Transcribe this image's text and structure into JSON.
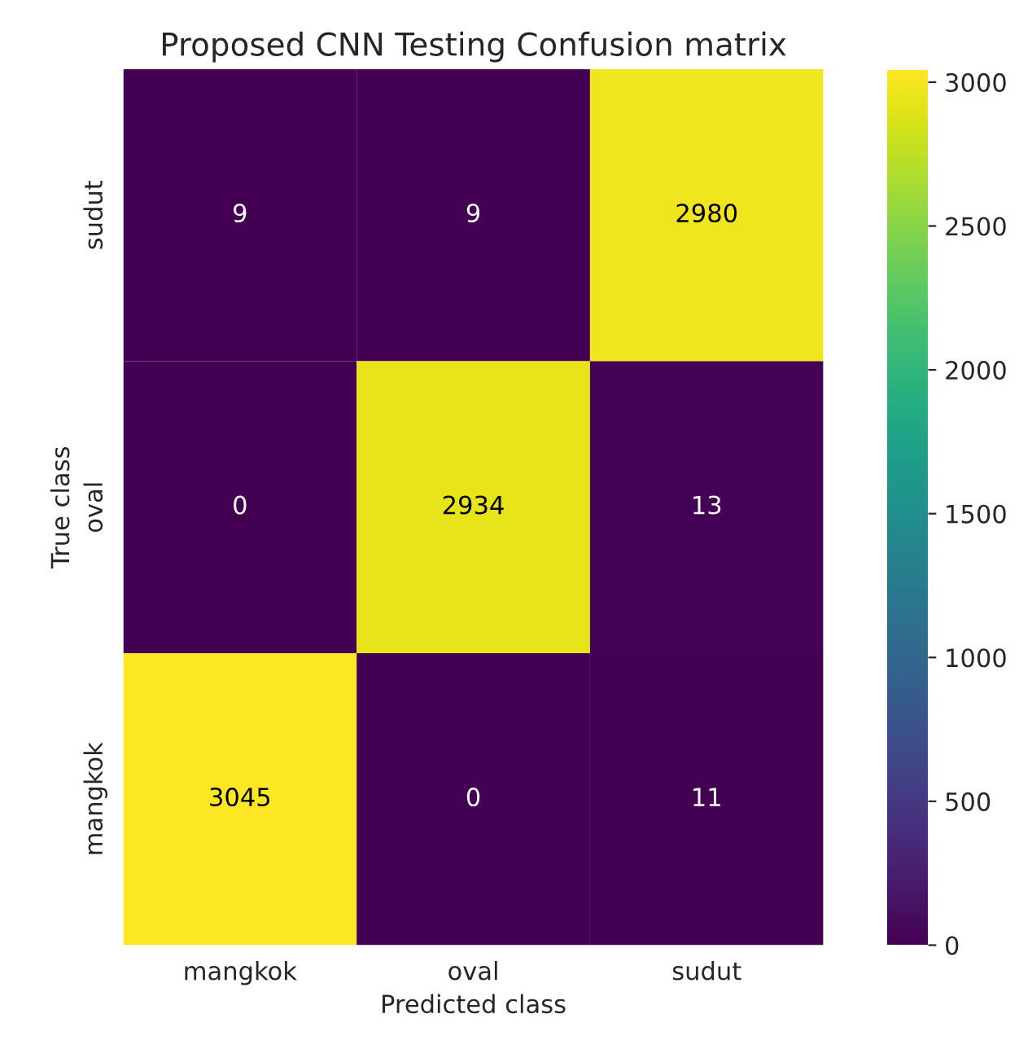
{
  "chart_data": {
    "type": "heatmap",
    "title": "Proposed CNN Testing Confusion matrix",
    "xlabel": "Predicted class",
    "ylabel": "True class",
    "categories": [
      "mangkok",
      "oval",
      "sudut"
    ],
    "y_categories": [
      "sudut",
      "oval",
      "mangkok"
    ],
    "cells": [
      [
        9,
        9,
        2980
      ],
      [
        0,
        2934,
        13
      ],
      [
        3045,
        0,
        11
      ]
    ],
    "clim": [
      0,
      3045
    ],
    "cticks": [
      0,
      500,
      1000,
      1500,
      2000,
      2500,
      3000
    ],
    "data_labels": true
  }
}
